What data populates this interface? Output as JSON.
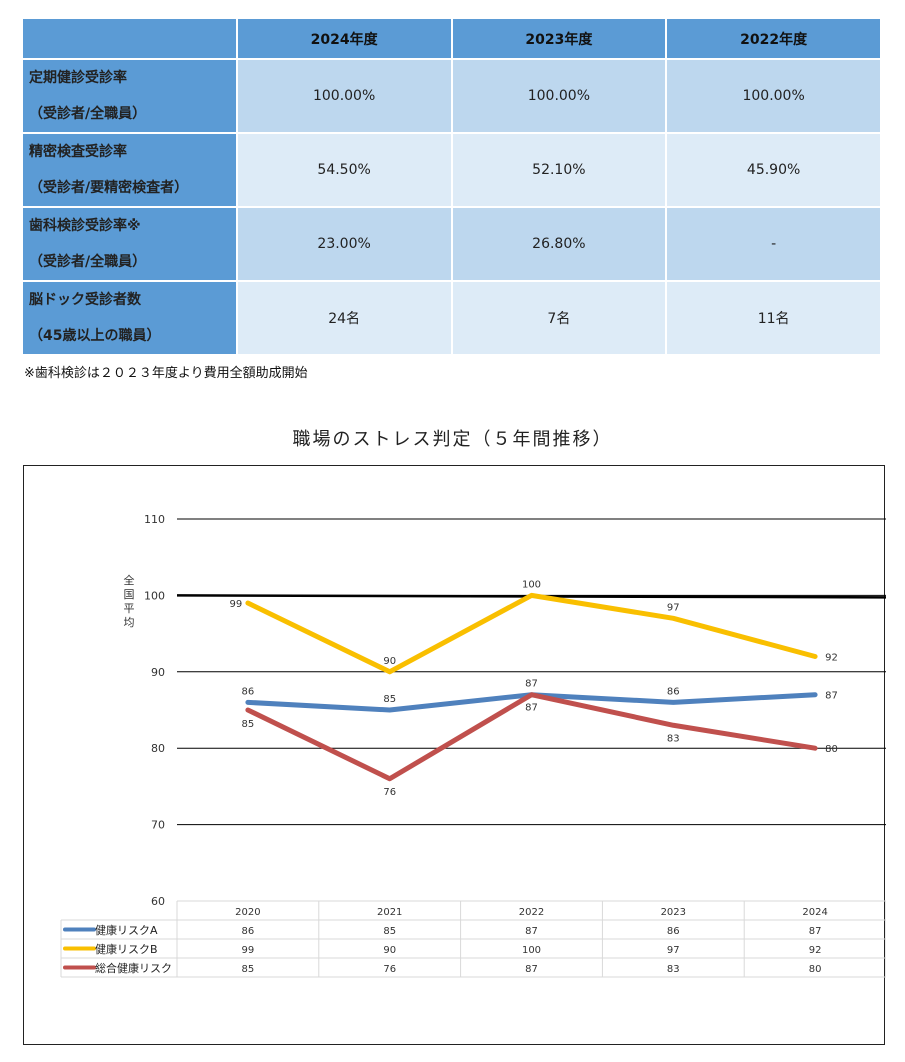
{
  "table": {
    "headers": [
      "",
      "2024年度",
      "2023年度",
      "2022年度"
    ],
    "rows": [
      {
        "title": "定期健診受診率",
        "sub": "（受診者/全職員）",
        "values": [
          "100.00%",
          "100.00%",
          "100.00%"
        ]
      },
      {
        "title": "精密検査受診率",
        "sub": "（受診者/要精密検査者）",
        "values": [
          "54.50%",
          "52.10%",
          "45.90%"
        ]
      },
      {
        "title": "歯科検診受診率※",
        "sub": "（受診者/全職員）",
        "values": [
          "23.00%",
          "26.80%",
          "-"
        ]
      },
      {
        "title": "脳ドック受診者数",
        "sub": "（45歳以上の職員）",
        "values": [
          "24名",
          "7名",
          "11名"
        ]
      }
    ],
    "footnote": "※歯科検診は２０２３年度より費用全額助成開始"
  },
  "chart_title": "職場のストレス判定（５年間推移）",
  "chart_data": {
    "type": "line",
    "categories": [
      "2020",
      "2021",
      "2022",
      "2023",
      "2024"
    ],
    "series": [
      {
        "name": "健康リスクA",
        "color": "#4f81bd",
        "values": [
          86,
          85,
          87,
          86,
          87
        ]
      },
      {
        "name": "健康リスクB",
        "color": "#f9bf00",
        "values": [
          99,
          90,
          100,
          97,
          92
        ]
      },
      {
        "name": "総合健康リスク",
        "color": "#c0504d",
        "values": [
          85,
          76,
          87,
          83,
          80
        ]
      }
    ],
    "reference_line": {
      "label": "全国平均",
      "value": 100,
      "color": "#000000"
    },
    "yticks": [
      60,
      70,
      80,
      90,
      100,
      110
    ],
    "ylim": [
      60,
      110
    ],
    "grid": true,
    "data_table": true
  }
}
